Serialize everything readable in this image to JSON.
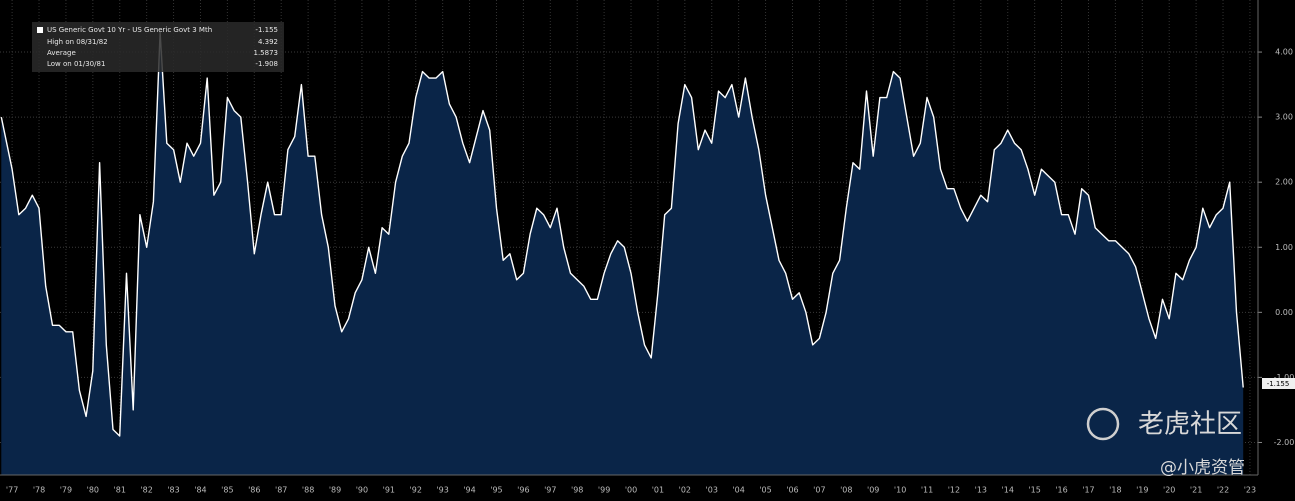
{
  "chart_data": {
    "type": "area",
    "legend_box": {
      "title": "US Generic Govt 10 Yr - US Generic Govt 3 Mth",
      "rows": [
        {
          "label": "High on 08/31/82",
          "value": 4.392
        },
        {
          "label": "Average",
          "value": 1.5873
        },
        {
          "label": "Low on 01/30/81",
          "value": -1.908
        }
      ]
    },
    "watermark": {
      "logo_text": "老虎社区",
      "handle": "@小虎资管"
    },
    "x": [
      1977.1,
      1977.5,
      1977.75,
      1978.0,
      1978.25,
      1978.5,
      1978.75,
      1979.0,
      1979.25,
      1979.5,
      1979.75,
      1980.0,
      1980.25,
      1980.5,
      1980.75,
      1981.0,
      1981.25,
      1981.5,
      1981.75,
      1982.0,
      1982.25,
      1982.5,
      1982.75,
      1983.0,
      1983.25,
      1983.5,
      1983.75,
      1984.0,
      1984.25,
      1984.5,
      1984.75,
      1985.0,
      1985.25,
      1985.5,
      1985.75,
      1986.0,
      1986.25,
      1986.5,
      1986.75,
      1987.0,
      1987.25,
      1987.5,
      1987.75,
      1988.0,
      1988.25,
      1988.5,
      1988.75,
      1989.0,
      1989.25,
      1989.5,
      1989.75,
      1990.0,
      1990.25,
      1990.5,
      1990.75,
      1991.0,
      1991.25,
      1991.5,
      1991.75,
      1992.0,
      1992.25,
      1992.5,
      1992.75,
      1993.0,
      1993.25,
      1993.5,
      1993.75,
      1994.0,
      1994.25,
      1994.5,
      1994.75,
      1995.0,
      1995.25,
      1995.5,
      1995.75,
      1996.0,
      1996.25,
      1996.5,
      1996.75,
      1997.0,
      1997.25,
      1997.5,
      1997.75,
      1998.0,
      1998.25,
      1998.5,
      1998.75,
      1999.0,
      1999.25,
      1999.5,
      1999.75,
      2000.0,
      2000.25,
      2000.5,
      2000.75,
      2001.0,
      2001.25,
      2001.5,
      2001.75,
      2002.0,
      2002.25,
      2002.5,
      2002.75,
      2003.0,
      2003.25,
      2003.5,
      2003.75,
      2004.0,
      2004.25,
      2004.5,
      2004.75,
      2005.0,
      2005.25,
      2005.5,
      2005.75,
      2006.0,
      2006.25,
      2006.5,
      2006.75,
      2007.0,
      2007.25,
      2007.5,
      2007.75,
      2008.0,
      2008.25,
      2008.5,
      2008.75,
      2009.0,
      2009.25,
      2009.5,
      2009.75,
      2010.0,
      2010.25,
      2010.5,
      2010.75,
      2011.0,
      2011.25,
      2011.5,
      2011.75,
      2012.0,
      2012.25,
      2012.5,
      2012.75,
      2013.0,
      2013.25,
      2013.5,
      2013.75,
      2014.0,
      2014.25,
      2014.5,
      2014.75,
      2015.0,
      2015.25,
      2015.5,
      2015.75,
      2016.0,
      2016.25,
      2016.5,
      2016.75,
      2017.0,
      2017.25,
      2017.5,
      2017.75,
      2018.0,
      2018.25,
      2018.5,
      2018.75,
      2019.0,
      2019.25,
      2019.5,
      2019.75,
      2020.0,
      2020.25,
      2020.5,
      2020.75,
      2021.0,
      2021.25,
      2021.5,
      2021.75,
      2022.0,
      2022.25,
      2022.5,
      2022.75,
      2023.0,
      2023.25
    ],
    "series": [
      {
        "name": "US Generic Govt 10 Yr - US Generic Govt 3 Mth",
        "color": "#ffffff",
        "fill": "#0a2548",
        "values": [
          3.0,
          2.2,
          1.5,
          1.6,
          1.8,
          1.6,
          0.4,
          -0.2,
          -0.2,
          -0.3,
          -0.3,
          -1.2,
          -1.6,
          -0.9,
          2.3,
          -0.5,
          -1.8,
          -1.9,
          0.6,
          -1.5,
          1.5,
          1.0,
          1.7,
          4.3,
          2.6,
          2.5,
          2.0,
          2.6,
          2.4,
          2.6,
          3.6,
          1.8,
          2.0,
          3.3,
          3.1,
          3.0,
          2.0,
          0.9,
          1.5,
          2.0,
          1.5,
          1.5,
          2.5,
          2.7,
          3.5,
          2.4,
          2.4,
          1.5,
          1.0,
          0.1,
          -0.3,
          -0.1,
          0.3,
          0.5,
          1.0,
          0.6,
          1.3,
          1.2,
          2.0,
          2.4,
          2.6,
          3.3,
          3.7,
          3.6,
          3.6,
          3.7,
          3.2,
          3.0,
          2.6,
          2.3,
          2.7,
          3.1,
          2.8,
          1.6,
          0.8,
          0.9,
          0.5,
          0.6,
          1.2,
          1.6,
          1.5,
          1.3,
          1.6,
          1.0,
          0.6,
          0.5,
          0.4,
          0.2,
          0.2,
          0.6,
          0.9,
          1.1,
          1.0,
          0.6,
          0.0,
          -0.5,
          -0.7,
          0.3,
          1.5,
          1.6,
          2.9,
          3.5,
          3.3,
          2.5,
          2.8,
          2.6,
          3.4,
          3.3,
          3.5,
          3.0,
          3.6,
          3.0,
          2.5,
          1.8,
          1.3,
          0.8,
          0.6,
          0.2,
          0.3,
          0.0,
          -0.5,
          -0.4,
          0.0,
          0.6,
          0.8,
          1.6,
          2.3,
          2.2,
          3.4,
          2.4,
          3.3,
          3.3,
          3.7,
          3.6,
          3.0,
          2.4,
          2.6,
          3.3,
          3.0,
          2.2,
          1.9,
          1.9,
          1.6,
          1.4,
          1.6,
          1.8,
          1.7,
          2.5,
          2.6,
          2.8,
          2.6,
          2.5,
          2.2,
          1.8,
          2.2,
          2.1,
          2.0,
          1.5,
          1.5,
          1.2,
          1.9,
          1.8,
          1.3,
          1.2,
          1.1,
          1.1,
          1.0,
          0.9,
          0.7,
          0.3,
          -0.1,
          -0.4,
          0.2,
          -0.1,
          0.6,
          0.5,
          0.8,
          1.0,
          1.6,
          1.3,
          1.5,
          1.6,
          2.0,
          0.0,
          -1.155
        ]
      }
    ],
    "xlim": [
      1977.05,
      2023.8
    ],
    "ylim": [
      -2.5,
      4.8
    ],
    "yticks": [
      {
        "value": -2,
        "label": "-2.00"
      },
      {
        "value": -1,
        "label": "-1.00"
      },
      {
        "value": 0,
        "label": "0.00"
      },
      {
        "value": 1,
        "label": "1.00"
      },
      {
        "value": 2,
        "label": "2.00"
      },
      {
        "value": 3,
        "label": "3.00"
      },
      {
        "value": 4,
        "label": "4.00"
      }
    ],
    "xticks": [
      {
        "value": 1977.5,
        "label": "'77"
      },
      {
        "value": 1978.5,
        "label": "'78"
      },
      {
        "value": 1979.5,
        "label": "'79"
      },
      {
        "value": 1980.5,
        "label": "'80"
      },
      {
        "value": 1981.5,
        "label": "'81"
      },
      {
        "value": 1982.5,
        "label": "'82"
      },
      {
        "value": 1983.5,
        "label": "'83"
      },
      {
        "value": 1984.5,
        "label": "'84"
      },
      {
        "value": 1985.5,
        "label": "'85"
      },
      {
        "value": 1986.5,
        "label": "'86"
      },
      {
        "value": 1987.5,
        "label": "'87"
      },
      {
        "value": 1988.5,
        "label": "'88"
      },
      {
        "value": 1989.5,
        "label": "'89"
      },
      {
        "value": 1990.5,
        "label": "'90"
      },
      {
        "value": 1991.5,
        "label": "'91"
      },
      {
        "value": 1992.5,
        "label": "'92"
      },
      {
        "value": 1993.5,
        "label": "'93"
      },
      {
        "value": 1994.5,
        "label": "'94"
      },
      {
        "value": 1995.5,
        "label": "'95"
      },
      {
        "value": 1996.5,
        "label": "'96"
      },
      {
        "value": 1997.5,
        "label": "'97"
      },
      {
        "value": 1998.5,
        "label": "'98"
      },
      {
        "value": 1999.5,
        "label": "'99"
      },
      {
        "value": 2000.5,
        "label": "'00"
      },
      {
        "value": 2001.5,
        "label": "'01"
      },
      {
        "value": 2002.5,
        "label": "'02"
      },
      {
        "value": 2003.5,
        "label": "'03"
      },
      {
        "value": 2004.5,
        "label": "'04"
      },
      {
        "value": 2005.5,
        "label": "'05"
      },
      {
        "value": 2006.5,
        "label": "'06"
      },
      {
        "value": 2007.5,
        "label": "'07"
      },
      {
        "value": 2008.5,
        "label": "'08"
      },
      {
        "value": 2009.5,
        "label": "'09"
      },
      {
        "value": 2010.5,
        "label": "'10"
      },
      {
        "value": 2011.5,
        "label": "'11"
      },
      {
        "value": 2012.5,
        "label": "'12"
      },
      {
        "value": 2013.5,
        "label": "'13"
      },
      {
        "value": 2014.5,
        "label": "'14"
      },
      {
        "value": 2015.5,
        "label": "'15"
      },
      {
        "value": 2016.5,
        "label": "'16"
      },
      {
        "value": 2017.5,
        "label": "'17"
      },
      {
        "value": 2018.5,
        "label": "'18"
      },
      {
        "value": 2019.5,
        "label": "'19"
      },
      {
        "value": 2020.5,
        "label": "'20"
      },
      {
        "value": 2021.5,
        "label": "'21"
      },
      {
        "value": 2022.5,
        "label": "'22"
      },
      {
        "value": 2023.5,
        "label": "'23"
      }
    ],
    "grid": true
  }
}
